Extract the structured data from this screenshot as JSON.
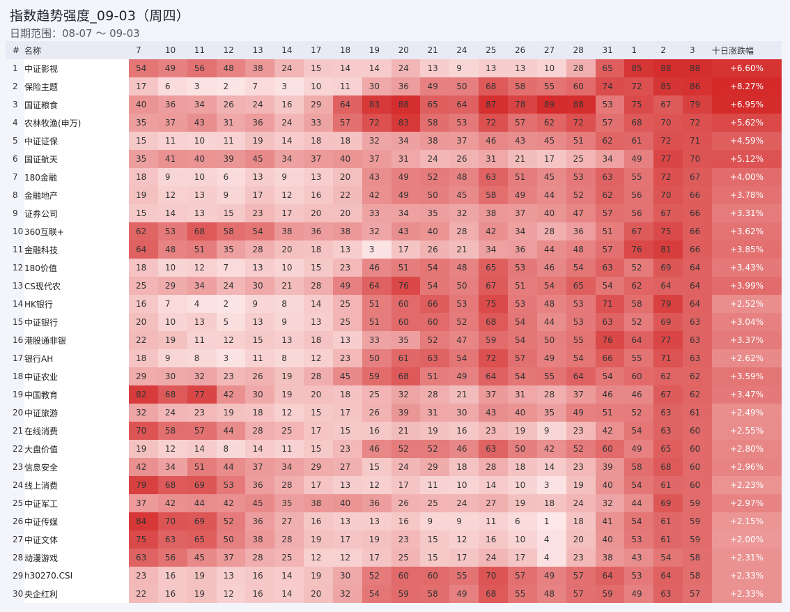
{
  "title": "指数趋势强度_09-03（周四）",
  "subtitle": "日期范围：08-07 ～ 09-03",
  "colors": {
    "low": "#fde9e9",
    "high": "#d42a2a"
  },
  "headers": {
    "index": "#",
    "name": "名称",
    "dates": [
      "7",
      "10",
      "11",
      "12",
      "13",
      "14",
      "17",
      "18",
      "19",
      "20",
      "21",
      "24",
      "25",
      "26",
      "27",
      "28",
      "31",
      "1",
      "2",
      "3"
    ],
    "change": "十日涨跌幅"
  },
  "rows": [
    {
      "name": "中证影视",
      "values": [
        54,
        49,
        56,
        48,
        38,
        24,
        15,
        14,
        14,
        24,
        13,
        9,
        13,
        13,
        10,
        28,
        65,
        85,
        88,
        88
      ],
      "change": "+6.60%"
    },
    {
      "name": "保险主题",
      "values": [
        17,
        6,
        3,
        2,
        7,
        3,
        10,
        11,
        30,
        36,
        49,
        50,
        68,
        58,
        55,
        60,
        74,
        72,
        85,
        86
      ],
      "change": "+8.27%"
    },
    {
      "name": "国证粮食",
      "values": [
        40,
        36,
        34,
        26,
        24,
        16,
        29,
        64,
        83,
        88,
        65,
        64,
        87,
        78,
        89,
        88,
        53,
        75,
        67,
        79
      ],
      "change": "+6.95%"
    },
    {
      "name": "农林牧渔(申万)",
      "values": [
        35,
        37,
        43,
        31,
        36,
        24,
        33,
        57,
        72,
        83,
        58,
        53,
        72,
        57,
        62,
        72,
        57,
        68,
        70,
        72
      ],
      "change": "+5.62%"
    },
    {
      "name": "中证证保",
      "values": [
        15,
        11,
        10,
        11,
        19,
        14,
        18,
        18,
        32,
        34,
        38,
        37,
        46,
        43,
        45,
        51,
        62,
        61,
        72,
        71
      ],
      "change": "+4.59%"
    },
    {
      "name": "国证航天",
      "values": [
        35,
        41,
        40,
        39,
        45,
        34,
        37,
        40,
        37,
        31,
        24,
        26,
        31,
        21,
        17,
        25,
        34,
        49,
        77,
        70
      ],
      "change": "+5.12%"
    },
    {
      "name": "180金融",
      "values": [
        18,
        9,
        10,
        6,
        13,
        9,
        13,
        20,
        43,
        49,
        52,
        48,
        63,
        51,
        45,
        53,
        63,
        55,
        72,
        67
      ],
      "change": "+4.00%"
    },
    {
      "name": "金融地产",
      "values": [
        19,
        12,
        13,
        9,
        17,
        12,
        16,
        22,
        42,
        49,
        50,
        45,
        58,
        49,
        44,
        52,
        62,
        56,
        70,
        66
      ],
      "change": "+3.78%"
    },
    {
      "name": "证券公司",
      "values": [
        15,
        14,
        13,
        15,
        23,
        17,
        20,
        20,
        33,
        34,
        35,
        32,
        38,
        37,
        40,
        47,
        57,
        56,
        67,
        66
      ],
      "change": "+3.31%"
    },
    {
      "name": "360互联+",
      "values": [
        62,
        53,
        68,
        58,
        54,
        38,
        36,
        38,
        32,
        43,
        40,
        28,
        42,
        34,
        28,
        36,
        51,
        67,
        75,
        66
      ],
      "change": "+3.62%"
    },
    {
      "name": "金融科技",
      "values": [
        64,
        48,
        51,
        35,
        28,
        20,
        18,
        13,
        3,
        17,
        26,
        21,
        34,
        36,
        44,
        48,
        57,
        76,
        81,
        66
      ],
      "change": "+3.85%"
    },
    {
      "name": "180价值",
      "values": [
        18,
        10,
        12,
        7,
        13,
        10,
        15,
        23,
        46,
        51,
        54,
        48,
        65,
        53,
        46,
        54,
        63,
        52,
        69,
        64
      ],
      "change": "+3.43%"
    },
    {
      "name": "CS现代农",
      "values": [
        25,
        29,
        34,
        24,
        30,
        21,
        28,
        49,
        64,
        76,
        54,
        50,
        67,
        51,
        54,
        65,
        54,
        62,
        64,
        64
      ],
      "change": "+3.99%"
    },
    {
      "name": "HK银行",
      "values": [
        16,
        7,
        4,
        2,
        9,
        8,
        14,
        25,
        51,
        60,
        66,
        53,
        75,
        53,
        48,
        53,
        71,
        58,
        79,
        64
      ],
      "change": "+2.52%"
    },
    {
      "name": "中证银行",
      "values": [
        20,
        10,
        13,
        5,
        13,
        9,
        13,
        25,
        51,
        60,
        60,
        52,
        68,
        54,
        44,
        53,
        63,
        52,
        69,
        63
      ],
      "change": "+3.04%"
    },
    {
      "name": "港股通非银",
      "values": [
        22,
        19,
        11,
        12,
        15,
        13,
        18,
        13,
        33,
        35,
        52,
        47,
        59,
        54,
        50,
        55,
        76,
        64,
        77,
        63
      ],
      "change": "+3.37%"
    },
    {
      "name": "银行AH",
      "values": [
        18,
        9,
        8,
        3,
        11,
        8,
        12,
        23,
        50,
        61,
        63,
        54,
        72,
        57,
        49,
        54,
        66,
        55,
        71,
        63
      ],
      "change": "+2.62%"
    },
    {
      "name": "中证农业",
      "values": [
        29,
        30,
        32,
        23,
        26,
        19,
        28,
        45,
        59,
        68,
        51,
        49,
        64,
        54,
        55,
        64,
        54,
        60,
        62,
        62
      ],
      "change": "+3.59%"
    },
    {
      "name": "中国教育",
      "values": [
        82,
        68,
        77,
        42,
        30,
        19,
        20,
        18,
        25,
        32,
        28,
        21,
        37,
        31,
        28,
        37,
        46,
        46,
        67,
        62
      ],
      "change": "+3.47%"
    },
    {
      "name": "中证旅游",
      "values": [
        32,
        24,
        23,
        19,
        18,
        12,
        15,
        17,
        26,
        39,
        31,
        30,
        43,
        40,
        35,
        49,
        51,
        52,
        63,
        61
      ],
      "change": "+2.49%"
    },
    {
      "name": "在线消费",
      "values": [
        70,
        58,
        57,
        44,
        28,
        25,
        17,
        15,
        16,
        21,
        19,
        16,
        23,
        19,
        9,
        23,
        42,
        54,
        63,
        60
      ],
      "change": "+2.55%"
    },
    {
      "name": "大盘价值",
      "values": [
        19,
        12,
        14,
        8,
        14,
        11,
        15,
        23,
        46,
        52,
        52,
        46,
        63,
        50,
        42,
        52,
        60,
        49,
        65,
        60
      ],
      "change": "+2.80%"
    },
    {
      "name": "信息安全",
      "values": [
        42,
        34,
        51,
        44,
        37,
        34,
        29,
        27,
        15,
        24,
        29,
        18,
        28,
        18,
        14,
        23,
        39,
        58,
        68,
        60
      ],
      "change": "+2.96%"
    },
    {
      "name": "线上消费",
      "values": [
        79,
        68,
        69,
        53,
        36,
        28,
        17,
        13,
        12,
        17,
        11,
        10,
        14,
        10,
        3,
        19,
        40,
        54,
        61,
        60
      ],
      "change": "+2.23%"
    },
    {
      "name": "中证军工",
      "values": [
        37,
        42,
        44,
        42,
        45,
        35,
        38,
        40,
        36,
        26,
        25,
        24,
        27,
        19,
        18,
        24,
        32,
        44,
        69,
        59
      ],
      "change": "+2.97%"
    },
    {
      "name": "中证传媒",
      "values": [
        84,
        70,
        69,
        52,
        36,
        27,
        16,
        13,
        13,
        16,
        9,
        9,
        11,
        6,
        1,
        18,
        41,
        54,
        61,
        59
      ],
      "change": "+2.15%"
    },
    {
      "name": "中证文体",
      "values": [
        75,
        63,
        65,
        50,
        38,
        28,
        19,
        17,
        19,
        23,
        15,
        12,
        16,
        10,
        4,
        20,
        40,
        53,
        61,
        59
      ],
      "change": "+2.00%"
    },
    {
      "name": "动漫游戏",
      "values": [
        63,
        56,
        45,
        37,
        28,
        25,
        12,
        12,
        17,
        25,
        15,
        17,
        24,
        17,
        4,
        23,
        38,
        43,
        54,
        58
      ],
      "change": "+2.31%"
    },
    {
      "name": "h30270.CSI",
      "values": [
        23,
        16,
        19,
        13,
        16,
        14,
        19,
        30,
        52,
        60,
        60,
        55,
        70,
        57,
        49,
        57,
        64,
        53,
        64,
        58
      ],
      "change": "+2.33%"
    },
    {
      "name": "央企红利",
      "values": [
        22,
        16,
        19,
        12,
        16,
        14,
        20,
        32,
        54,
        59,
        58,
        49,
        68,
        55,
        48,
        57,
        59,
        49,
        63,
        57
      ],
      "change": "+2.33%"
    }
  ]
}
